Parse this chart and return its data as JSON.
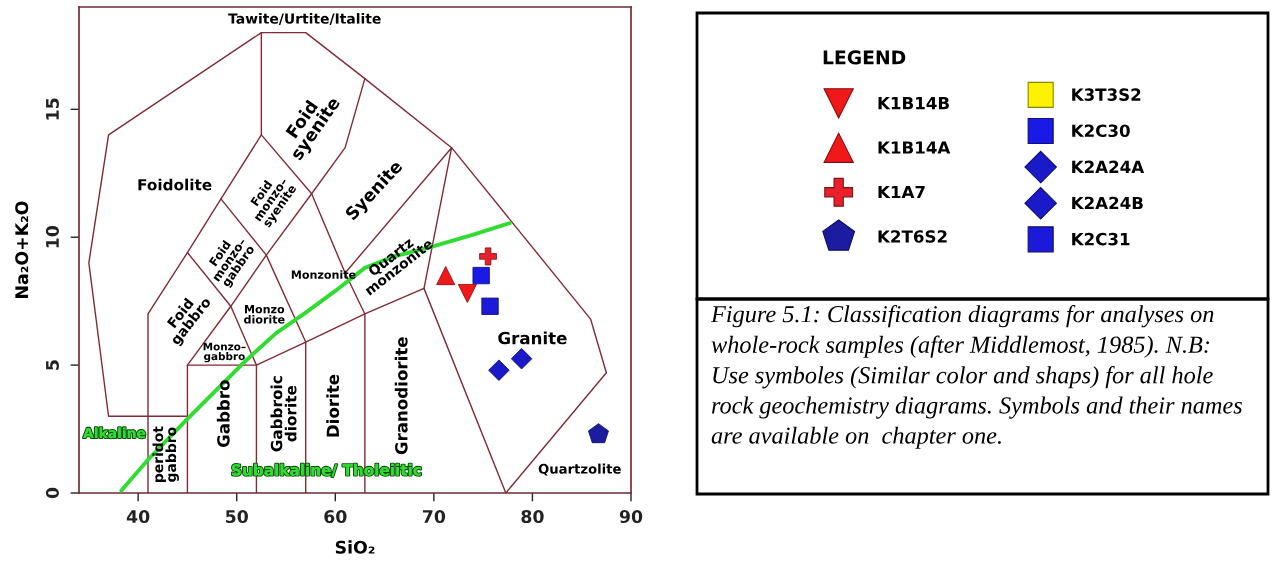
{
  "chart_data": {
    "type": "scatter",
    "xlabel": "SiO₂",
    "ylabel": "Na₂O+K₂O",
    "xlim": [
      34,
      90
    ],
    "ylim": [
      0,
      19
    ],
    "xticks": [
      40,
      50,
      60,
      70,
      80,
      90
    ],
    "yticks": [
      0,
      5,
      10,
      15
    ],
    "legend": "right",
    "legend_title": "LEGEND",
    "series": [
      {
        "type": "line",
        "color": "#7f2b35",
        "x": [
          45,
          37,
          35,
          37,
          52.5,
          57,
          63,
          71.8,
          85.9,
          87.5,
          77.3,
          69
        ],
        "values": [
          3,
          3,
          9,
          14,
          18,
          18,
          16.2,
          13.5,
          6.8,
          4.7,
          0,
          8
        ]
      },
      {
        "type": "line",
        "color": "#7f2b35",
        "x": [
          41,
          41,
          45,
          48.4,
          52.5,
          52.5
        ],
        "values": [
          0,
          7,
          9.4,
          11.5,
          14,
          18
        ]
      },
      {
        "type": "line",
        "color": "#7f2b35",
        "x": [
          45,
          49.4,
          53,
          57.6,
          61,
          63
        ],
        "values": [
          5,
          7.3,
          9.3,
          11.7,
          13.5,
          16.2
        ]
      },
      {
        "type": "line",
        "color": "#7f2b35",
        "x": [
          45,
          49.4,
          52,
          52
        ],
        "values": [
          9.4,
          7.3,
          5,
          0
        ]
      },
      {
        "type": "line",
        "color": "#7f2b35",
        "x": [
          48.4,
          53,
          57,
          57
        ],
        "values": [
          11.5,
          9.3,
          5.9,
          0
        ]
      },
      {
        "type": "line",
        "color": "#7f2b35",
        "x": [
          52.5,
          57.6,
          61,
          63,
          63
        ],
        "values": [
          14,
          11.7,
          8.6,
          7,
          0
        ]
      },
      {
        "type": "line",
        "color": "#7f2b35",
        "x": [
          45,
          45,
          52,
          57,
          63,
          69,
          71.8,
          61
        ],
        "values": [
          0,
          5,
          5,
          5.9,
          7,
          8,
          13.5,
          8.6
        ]
      },
      {
        "type": "line",
        "color": "#2fdc2f",
        "x": [
          38.3,
          41,
          45,
          48,
          51,
          54,
          57,
          60,
          63,
          66,
          70,
          74,
          77.7
        ],
        "values": [
          0.1,
          1.3,
          2.9,
          4.05,
          5.2,
          6.25,
          7.05,
          7.9,
          8.8,
          9.25,
          9.65,
          10.1,
          10.55
        ]
      },
      {
        "name": "K1B14B",
        "marker": "triangle-down",
        "color": "#f01818",
        "x": [
          73.4
        ],
        "values": [
          7.8
        ]
      },
      {
        "name": "K1B14A",
        "marker": "triangle",
        "color": "#f01818",
        "x": [
          71.2
        ],
        "values": [
          8.5
        ]
      },
      {
        "name": "K1A7",
        "marker": "cross",
        "color": "#e8202a",
        "x": [
          75.5
        ],
        "values": [
          9.25
        ]
      },
      {
        "name": "K2T6S2",
        "color": "#1c1ca0",
        "x": [
          86.7
        ],
        "values": [
          2.3
        ]
      },
      {
        "name": "K3T3S2",
        "marker": "square",
        "color": "#fff200"
      },
      {
        "name": "K2C30",
        "marker": "square",
        "color": "#1a1ae6",
        "x": [
          74.8
        ],
        "values": [
          8.5
        ]
      },
      {
        "name": "K2A24A",
        "marker": "diamond",
        "color": "#1a1ac8",
        "x": [
          76.6
        ],
        "values": [
          4.8
        ]
      },
      {
        "name": "K2A24B",
        "marker": "diamond",
        "color": "#1a1ac8",
        "x": [
          78.9
        ],
        "values": [
          5.25
        ]
      },
      {
        "name": "K2C31",
        "marker": "square",
        "color": "#1a1ad8",
        "x": [
          75.7
        ],
        "values": [
          7.3
        ]
      }
    ],
    "annotations": [
      "Tawite/Urtite/Italite",
      "Foidolite",
      "Foid\nsyenite",
      "Foid\nmonzo–\nsyenite",
      "Foid\nmonzo–\ngabbro",
      "Foid\ngabbro",
      "Syenite",
      "Monzonite",
      "Quartz\nmonzonite",
      "Monzo\ndiorite",
      "Monzo–\ngabbro",
      "Gabbro",
      "Gabbroic\ndiorite",
      "Diorite",
      "Granodiorite",
      "peridot\ngabbro",
      "Granite",
      "Quartzolite",
      "Alkaline",
      "Subalkaline/ Tholeiitic",
      "Figure 5.1: Classification diagrams for analyses on\nwhole-rock samples (after Middlemost, 1985). N.B:\nUse symboles (Similar color and shaps) for all hole\nrock geochemistry diagrams. Symbols and their names\nare available on  chapter one."
    ]
  }
}
